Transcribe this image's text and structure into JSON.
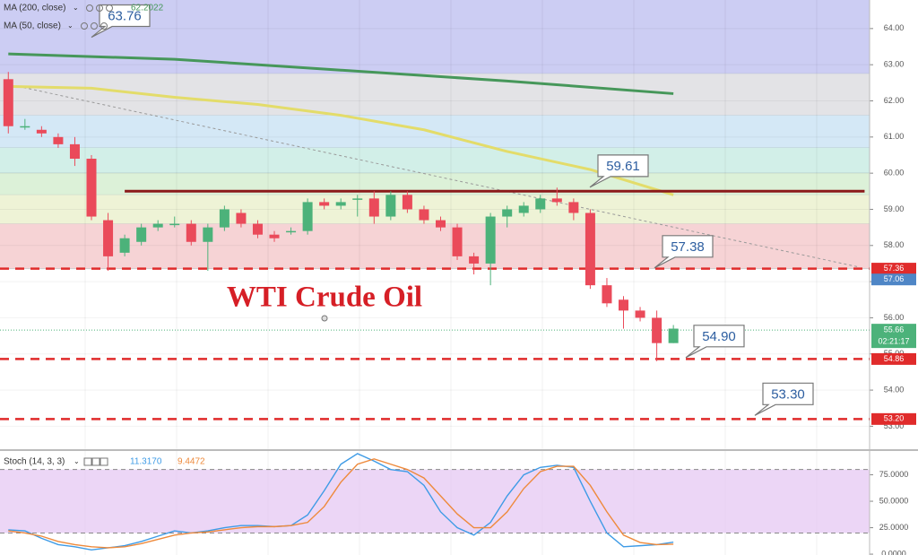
{
  "chart_data": [
    {
      "type": "candlestick",
      "title": "WTI Crude Oil",
      "open": [
        62.6,
        61.3,
        61.2,
        61.0,
        60.8,
        60.4,
        58.7,
        57.8,
        58.1,
        58.5,
        58.6,
        58.6,
        58.1,
        58.5,
        58.9,
        58.6,
        58.3,
        58.4,
        58.4,
        59.2,
        59.1,
        59.3,
        59.3,
        58.8,
        59.4,
        59.0,
        58.7,
        58.5,
        57.7,
        57.5,
        58.8,
        58.9,
        59.0,
        59.3,
        59.2,
        58.9,
        56.9,
        56.5,
        56.2,
        56.0,
        55.3
      ],
      "high": [
        62.8,
        61.5,
        61.3,
        61.1,
        61.0,
        60.5,
        58.9,
        58.3,
        58.6,
        58.7,
        58.8,
        58.7,
        58.6,
        59.1,
        59.0,
        58.7,
        58.4,
        58.5,
        59.3,
        59.3,
        59.3,
        59.4,
        59.5,
        59.5,
        59.5,
        59.1,
        58.8,
        58.6,
        57.8,
        58.9,
        59.1,
        59.2,
        59.4,
        59.6,
        59.3,
        59.0,
        57.1,
        56.6,
        56.3,
        56.2,
        55.8
      ],
      "low": [
        61.1,
        61.2,
        61.0,
        60.7,
        60.2,
        58.7,
        57.3,
        57.7,
        58.0,
        58.4,
        58.5,
        58.0,
        57.3,
        58.4,
        58.5,
        58.2,
        58.1,
        58.3,
        58.3,
        59.0,
        59.0,
        58.8,
        58.6,
        58.7,
        58.9,
        58.6,
        58.4,
        57.6,
        57.2,
        56.9,
        58.5,
        58.8,
        58.9,
        59.1,
        58.7,
        56.8,
        56.3,
        55.7,
        55.9,
        54.8,
        55.3
      ],
      "close": [
        61.3,
        61.3,
        61.1,
        60.8,
        60.4,
        58.8,
        57.7,
        58.2,
        58.5,
        58.6,
        58.6,
        58.1,
        58.5,
        59.0,
        58.6,
        58.3,
        58.2,
        58.4,
        59.2,
        59.1,
        59.2,
        59.3,
        58.8,
        59.4,
        59.0,
        58.7,
        58.5,
        57.7,
        57.5,
        58.8,
        59.0,
        59.1,
        59.3,
        59.2,
        58.9,
        56.9,
        56.4,
        56.2,
        56.0,
        55.3,
        55.7
      ],
      "up_color": "#4cb27a",
      "down_color": "#ea4a5a",
      "xlim": [
        -0.5,
        51.8
      ],
      "ylim": [
        52.39,
        64.79
      ],
      "yticks": [
        {
          "value": 53,
          "label": "53.00"
        },
        {
          "value": 54,
          "label": "54.00"
        },
        {
          "value": 55,
          "label": "55.00"
        },
        {
          "value": 56,
          "label": "56.00"
        },
        {
          "value": 57,
          "label": "57.00"
        },
        {
          "value": 58,
          "label": "58.00"
        },
        {
          "value": 59,
          "label": "59.00"
        },
        {
          "value": 60,
          "label": "60.00"
        },
        {
          "value": 61,
          "label": "61.00"
        },
        {
          "value": 62,
          "label": "62.00"
        },
        {
          "value": 63,
          "label": "63.00"
        },
        {
          "value": 64,
          "label": "64.00"
        }
      ],
      "zones": [
        {
          "from": 62.75,
          "to": 64.79,
          "color": "#cccdf3"
        },
        {
          "from": 61.6,
          "to": 62.75,
          "color": "#e3e3e6"
        },
        {
          "from": 60.7,
          "to": 61.6,
          "color": "#d4e8f6"
        },
        {
          "from": 60.0,
          "to": 60.7,
          "color": "#d2efe8"
        },
        {
          "from": 59.4,
          "to": 60.0,
          "color": "#dcf1d8"
        },
        {
          "from": 58.6,
          "to": 59.4,
          "color": "#eef3d6"
        },
        {
          "from": 57.36,
          "to": 58.6,
          "color": "#f6d3d5"
        }
      ],
      "overlays": [
        {
          "name": "MA (200, close)",
          "value_label": "62.2022",
          "color": "#46975a",
          "x": [
            0,
            10,
            20,
            30,
            40
          ],
          "values": [
            63.3,
            63.15,
            62.85,
            62.55,
            62.2
          ]
        },
        {
          "name": "MA (50, close)",
          "color": "#e3dc6a",
          "x": [
            0,
            5,
            10,
            15,
            20,
            25,
            30,
            35,
            40
          ],
          "values": [
            62.4,
            62.35,
            62.1,
            61.9,
            61.6,
            61.2,
            60.6,
            60.1,
            59.4
          ]
        }
      ],
      "trend_line": {
        "x": [
          0.6,
          51.2
        ],
        "values": [
          62.4,
          57.4
        ],
        "color": "#9a9a9a"
      },
      "resistance": {
        "x": [
          7,
          51.5
        ],
        "value": 59.5,
        "color": "#8b1a1a"
      },
      "levels": [
        {
          "value": 57.36,
          "label": "57.36"
        },
        {
          "value": 54.86,
          "label": "54.86"
        },
        {
          "value": 53.2,
          "label": "53.20"
        }
      ],
      "level_color": "#e02b2b",
      "price_tag": {
        "value": 57.06,
        "label": "57.06",
        "color": "#4f86c6"
      },
      "last_price": {
        "value": 55.66,
        "label": "55.66",
        "countdown": "02:21:17",
        "color": "#4cb27a"
      },
      "callouts": [
        {
          "value": 63.76,
          "label": "63.76"
        },
        {
          "value": 59.61,
          "label": "59.61"
        },
        {
          "value": 57.38,
          "label": "57.38"
        },
        {
          "value": 54.9,
          "label": "54.90"
        },
        {
          "value": 53.3,
          "label": "53.30"
        }
      ]
    },
    {
      "type": "line",
      "title": "Stoch (14, 3, 3)",
      "xlim": [
        -0.5,
        51.8
      ],
      "ylim": [
        -0.8,
        97.5
      ],
      "yticks": [
        {
          "value": 0,
          "label": "0.0000"
        },
        {
          "value": 25,
          "label": "25.0000"
        },
        {
          "value": 50,
          "label": "50.0000"
        },
        {
          "value": 75,
          "label": "75.0000"
        }
      ],
      "band": [
        20,
        80
      ],
      "band_color": "#e5c8f3",
      "series": [
        {
          "value_label": "11.3170",
          "color": "#3e9be6",
          "values": [
            23,
            22,
            15,
            9,
            7,
            4,
            6,
            8,
            12,
            17,
            22,
            20,
            22,
            25,
            27,
            27,
            26,
            27,
            37,
            60,
            85,
            95,
            88,
            80,
            78,
            65,
            40,
            25,
            18,
            30,
            55,
            75,
            82,
            84,
            82,
            50,
            20,
            7,
            8,
            9,
            11.3
          ]
        },
        {
          "value_label": "9.4472",
          "color": "#ee8a3c",
          "values": [
            22,
            20,
            17,
            12,
            9,
            7,
            6,
            7,
            10,
            14,
            18,
            20,
            21,
            23,
            25,
            26,
            26,
            27,
            30,
            45,
            68,
            85,
            90,
            85,
            80,
            72,
            55,
            38,
            25,
            25,
            40,
            62,
            78,
            83,
            83,
            65,
            40,
            18,
            11,
            9,
            9.4
          ]
        }
      ]
    }
  ]
}
